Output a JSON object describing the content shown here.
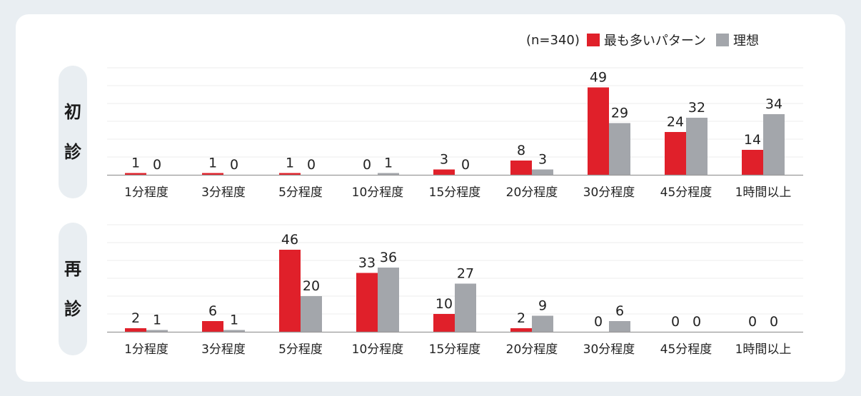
{
  "legend": {
    "n_label": "(n=340)",
    "series1_label": "最も多いパターン",
    "series2_label": "理想"
  },
  "colors": {
    "series1": "#e0202a",
    "series2": "#a3a6ab"
  },
  "panels": [
    {
      "label_chars": [
        "初",
        "診"
      ]
    },
    {
      "label_chars": [
        "再",
        "診"
      ]
    }
  ],
  "chart_data": [
    {
      "type": "bar",
      "panel_label": "初診",
      "categories": [
        "1分程度",
        "3分程度",
        "5分程度",
        "10分程度",
        "15分程度",
        "20分程度",
        "30分程度",
        "45分程度",
        "1時間以上"
      ],
      "series": [
        {
          "name": "最も多いパターン",
          "values": [
            1,
            1,
            1,
            0,
            3,
            8,
            49,
            24,
            14
          ]
        },
        {
          "name": "理想",
          "values": [
            0,
            0,
            0,
            1,
            0,
            3,
            29,
            32,
            34
          ]
        }
      ],
      "ylim": [
        0,
        60
      ],
      "grid": true
    },
    {
      "type": "bar",
      "panel_label": "再診",
      "categories": [
        "1分程度",
        "3分程度",
        "5分程度",
        "10分程度",
        "15分程度",
        "20分程度",
        "30分程度",
        "45分程度",
        "1時間以上"
      ],
      "series": [
        {
          "name": "最も多いパターン",
          "values": [
            2,
            6,
            46,
            33,
            10,
            2,
            0,
            0,
            0
          ]
        },
        {
          "name": "理想",
          "values": [
            1,
            1,
            20,
            36,
            27,
            9,
            6,
            0,
            0
          ]
        }
      ],
      "ylim": [
        0,
        60
      ],
      "grid": true
    }
  ]
}
